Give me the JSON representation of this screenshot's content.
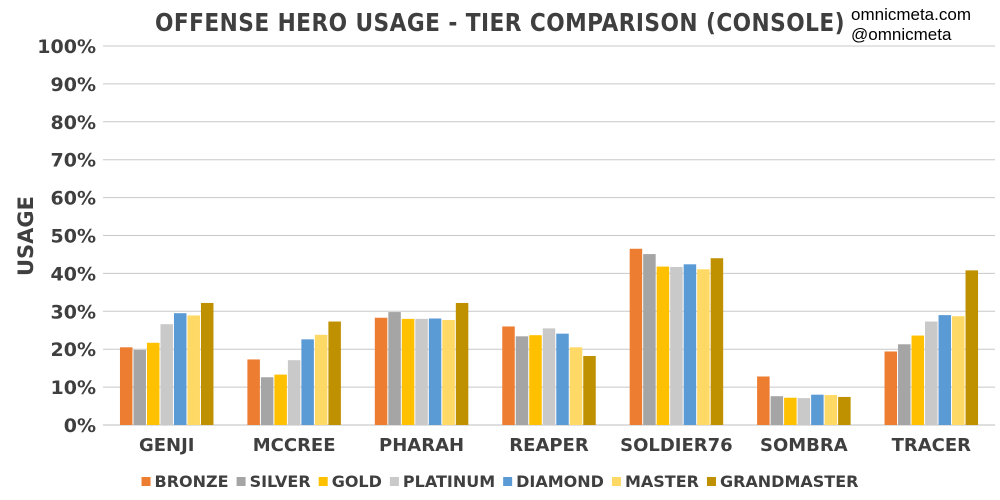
{
  "chart_data": {
    "type": "bar",
    "title": "OFFENSE HERO USAGE - TIER COMPARISON (CONSOLE)",
    "ylabel": "USAGE",
    "xlabel": "",
    "ylim": [
      0,
      100
    ],
    "y_unit": "%",
    "y_ticks": [
      "0%",
      "10%",
      "20%",
      "30%",
      "40%",
      "50%",
      "60%",
      "70%",
      "80%",
      "90%",
      "100%"
    ],
    "grid": true,
    "legend_position": "bottom",
    "categories": [
      "GENJI",
      "MCCREE",
      "PHARAH",
      "REAPER",
      "SOLDIER76",
      "SOMBRA",
      "TRACER"
    ],
    "series": [
      {
        "name": "BRONZE",
        "color": "#ed7d31",
        "values": [
          20.5,
          17.3,
          28.3,
          26.0,
          46.5,
          12.8,
          19.4
        ]
      },
      {
        "name": "SILVER",
        "color": "#a5a5a5",
        "values": [
          19.8,
          12.6,
          29.8,
          23.4,
          45.1,
          7.6,
          21.3
        ]
      },
      {
        "name": "GOLD",
        "color": "#ffc000",
        "values": [
          21.7,
          13.3,
          28.0,
          23.7,
          41.8,
          7.2,
          23.6
        ]
      },
      {
        "name": "PLATINUM",
        "color": "#c9c9c9",
        "values": [
          26.6,
          17.1,
          28.0,
          25.5,
          41.7,
          7.1,
          27.3
        ]
      },
      {
        "name": "DIAMOND",
        "color": "#5b9bd5",
        "values": [
          29.5,
          22.6,
          28.1,
          24.1,
          42.4,
          8.0,
          29.0
        ]
      },
      {
        "name": "MASTER",
        "color": "#ffd966",
        "values": [
          28.9,
          23.8,
          27.7,
          20.5,
          41.1,
          7.9,
          28.7
        ]
      },
      {
        "name": "GRANDMASTER",
        "color": "#bf9000",
        "values": [
          32.2,
          27.3,
          32.2,
          18.2,
          44.0,
          7.4,
          40.8
        ]
      }
    ]
  },
  "credit": {
    "line1": "omnicmeta.com",
    "line2": "@omnicmeta"
  }
}
